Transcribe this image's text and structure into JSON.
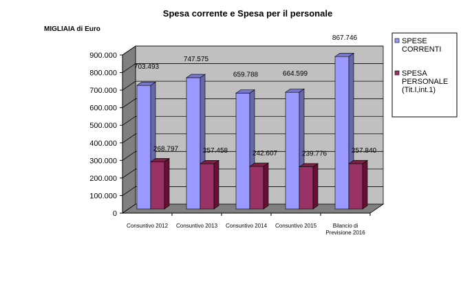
{
  "chart_data": {
    "type": "bar",
    "title": "Spesa corrente  e Spesa per il personale",
    "ylabel": "MIGLIAIA di Euro",
    "xlabel": "",
    "categories": [
      [
        "Consuntivo 2012"
      ],
      [
        "Consuntivo 2013"
      ],
      [
        "Consuntivo 2014"
      ],
      [
        "Consuntivo 2015"
      ],
      [
        "Bilancio di",
        "Previsione 2016"
      ]
    ],
    "series": [
      {
        "name": [
          "SPESE",
          "CORRENTI"
        ],
        "color": "#9999FF",
        "values": [
          703493,
          747575,
          659788,
          664599,
          867746
        ],
        "labels": [
          "703.493",
          "747.575",
          "659.788",
          "664.599",
          "867.746"
        ]
      },
      {
        "name": [
          "SPESA",
          "PERSONALE",
          "(Tit.I,int.1)"
        ],
        "color": "#993366",
        "values": [
          268797,
          257458,
          242607,
          239776,
          257840
        ],
        "labels": [
          "268.797",
          "257.458",
          "242.607",
          "239.776",
          "257.840"
        ]
      }
    ],
    "ylim": [
      0,
      900000
    ],
    "yticks": [
      "0",
      "100.000",
      "200.000",
      "300.000",
      "400.000",
      "500.000",
      "600.000",
      "700.000",
      "800.000",
      "900.000"
    ],
    "grid": true,
    "style": "3d-clustered-column",
    "legend": "right"
  }
}
